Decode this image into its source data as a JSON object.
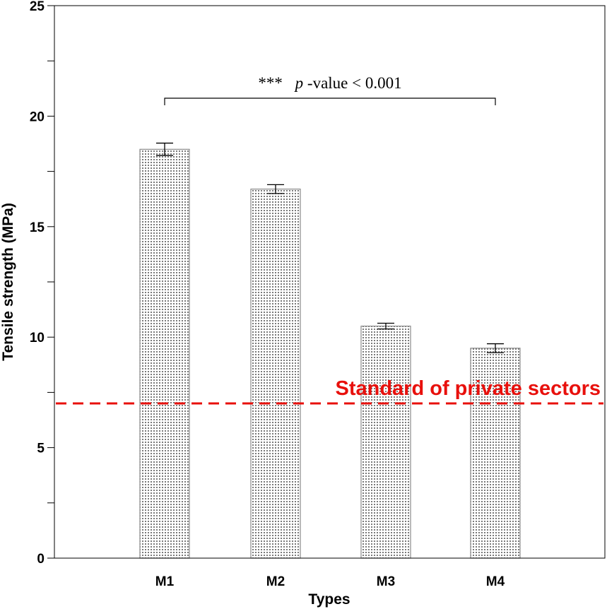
{
  "chart_data": {
    "type": "bar",
    "title": "",
    "xlabel": "Types",
    "ylabel": "Tensile strength (MPa)",
    "categories": [
      "M1",
      "M2",
      "M3",
      "M4"
    ],
    "values": [
      18.5,
      16.7,
      10.5,
      9.5
    ],
    "errors": [
      0.28,
      0.2,
      0.13,
      0.2
    ],
    "ylim": [
      0,
      25
    ],
    "yticks": [
      0,
      5,
      10,
      15,
      20,
      25
    ],
    "grid": false,
    "bar_fill": "dotted pattern",
    "reference_line": {
      "value": 7,
      "label": "Standard of private sectors",
      "color": "#e8100c",
      "style": "dashed"
    },
    "significance": {
      "stars": "***",
      "p_italic": "p",
      "text": "-value < 0.001",
      "from": "M1",
      "to": "M4"
    }
  }
}
